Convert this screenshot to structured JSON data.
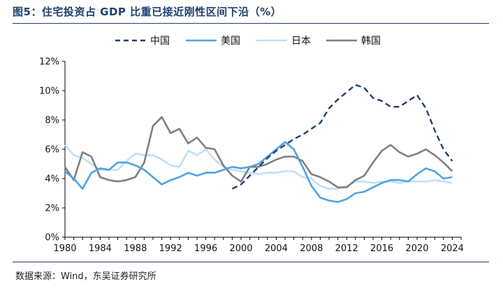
{
  "title": "图5：住宅投资占 GDP 比重已接近刚性区间下沿（%）",
  "source": "数据来源：Wind，东吴证券研究所",
  "chart_data": {
    "type": "line",
    "title": "住宅投资占 GDP 比重已接近刚性区间下沿（%）",
    "xlabel": "",
    "ylabel": "",
    "xlim": [
      1980,
      2025
    ],
    "ylim": [
      0,
      12
    ],
    "x_ticks": [
      "1980",
      "1984",
      "1988",
      "1992",
      "1996",
      "2000",
      "2004",
      "2008",
      "2012",
      "2016",
      "2020",
      "2024"
    ],
    "y_ticks": [
      "0%",
      "2%",
      "4%",
      "6%",
      "8%",
      "10%",
      "12%"
    ],
    "legend_position": "top-center",
    "grid": false,
    "series": [
      {
        "name": "中国",
        "color": "#1f3f6e",
        "dash": true,
        "x": [
          1999,
          2000,
          2001,
          2002,
          2003,
          2004,
          2005,
          2006,
          2007,
          2008,
          2009,
          2010,
          2011,
          2012,
          2013,
          2014,
          2015,
          2016,
          2017,
          2018,
          2019,
          2020,
          2021,
          2022,
          2023,
          2024
        ],
        "y": [
          3.3,
          3.6,
          4.2,
          4.8,
          5.4,
          5.9,
          6.3,
          6.7,
          7.0,
          7.4,
          7.8,
          8.8,
          9.4,
          9.9,
          10.4,
          10.2,
          9.5,
          9.3,
          8.9,
          8.9,
          9.3,
          9.7,
          8.8,
          7.3,
          6.0,
          5.2
        ]
      },
      {
        "name": "美国",
        "color": "#4ea3e0",
        "dash": false,
        "x": [
          1980,
          1981,
          1982,
          1983,
          1984,
          1985,
          1986,
          1987,
          1988,
          1989,
          1990,
          1991,
          1992,
          1993,
          1994,
          1995,
          1996,
          1997,
          1998,
          1999,
          2000,
          2001,
          2002,
          2003,
          2004,
          2005,
          2006,
          2007,
          2008,
          2009,
          2010,
          2011,
          2012,
          2013,
          2014,
          2015,
          2016,
          2017,
          2018,
          2019,
          2020,
          2021,
          2022,
          2023,
          2024
        ],
        "y": [
          4.5,
          4.0,
          3.3,
          4.4,
          4.7,
          4.6,
          5.1,
          5.1,
          4.9,
          4.6,
          4.1,
          3.6,
          3.9,
          4.1,
          4.4,
          4.2,
          4.4,
          4.4,
          4.6,
          4.8,
          4.7,
          4.8,
          5.0,
          5.5,
          6.0,
          6.5,
          6.0,
          4.8,
          3.5,
          2.7,
          2.5,
          2.4,
          2.6,
          3.0,
          3.1,
          3.4,
          3.7,
          3.9,
          3.9,
          3.8,
          4.3,
          4.7,
          4.5,
          4.0,
          4.1
        ]
      },
      {
        "name": "日本",
        "color": "#bfe0f5",
        "dash": false,
        "x": [
          1980,
          1981,
          1982,
          1983,
          1984,
          1985,
          1986,
          1987,
          1988,
          1989,
          1990,
          1991,
          1992,
          1993,
          1994,
          1995,
          1996,
          1997,
          1998,
          1999,
          2000,
          2001,
          2002,
          2003,
          2004,
          2005,
          2006,
          2007,
          2008,
          2009,
          2010,
          2011,
          2012,
          2013,
          2014,
          2015,
          2016,
          2017,
          2018,
          2019,
          2020,
          2021,
          2022,
          2023,
          2024
        ],
        "y": [
          6.3,
          5.6,
          5.4,
          5.0,
          4.6,
          4.6,
          4.6,
          5.2,
          5.7,
          5.6,
          5.6,
          5.3,
          4.9,
          4.8,
          5.9,
          5.6,
          6.0,
          5.3,
          4.8,
          4.6,
          4.5,
          4.4,
          4.3,
          4.4,
          4.4,
          4.5,
          4.5,
          4.1,
          4.0,
          3.5,
          3.3,
          3.3,
          3.5,
          3.8,
          3.8,
          3.7,
          3.8,
          3.8,
          3.7,
          3.8,
          3.8,
          3.8,
          3.9,
          3.8,
          3.7
        ]
      },
      {
        "name": "韩国",
        "color": "#7f7f7f",
        "dash": false,
        "x": [
          1980,
          1981,
          1982,
          1983,
          1984,
          1985,
          1986,
          1987,
          1988,
          1989,
          1990,
          1991,
          1992,
          1993,
          1994,
          1995,
          1996,
          1997,
          1998,
          1999,
          2000,
          2001,
          2002,
          2003,
          2004,
          2005,
          2006,
          2007,
          2008,
          2009,
          2010,
          2011,
          2012,
          2013,
          2014,
          2015,
          2016,
          2017,
          2018,
          2019,
          2020,
          2021,
          2022,
          2023,
          2024
        ],
        "y": [
          4.8,
          3.9,
          5.8,
          5.5,
          4.1,
          3.9,
          3.8,
          3.9,
          4.1,
          5.1,
          7.6,
          8.2,
          7.1,
          7.4,
          6.4,
          6.8,
          6.1,
          6.0,
          4.9,
          4.2,
          3.8,
          4.8,
          4.8,
          5.0,
          5.3,
          5.5,
          5.5,
          5.2,
          4.3,
          4.1,
          3.8,
          3.4,
          3.4,
          3.9,
          4.2,
          5.1,
          5.9,
          6.3,
          5.8,
          5.5,
          5.7,
          6.0,
          5.6,
          5.1,
          4.5
        ]
      }
    ]
  }
}
